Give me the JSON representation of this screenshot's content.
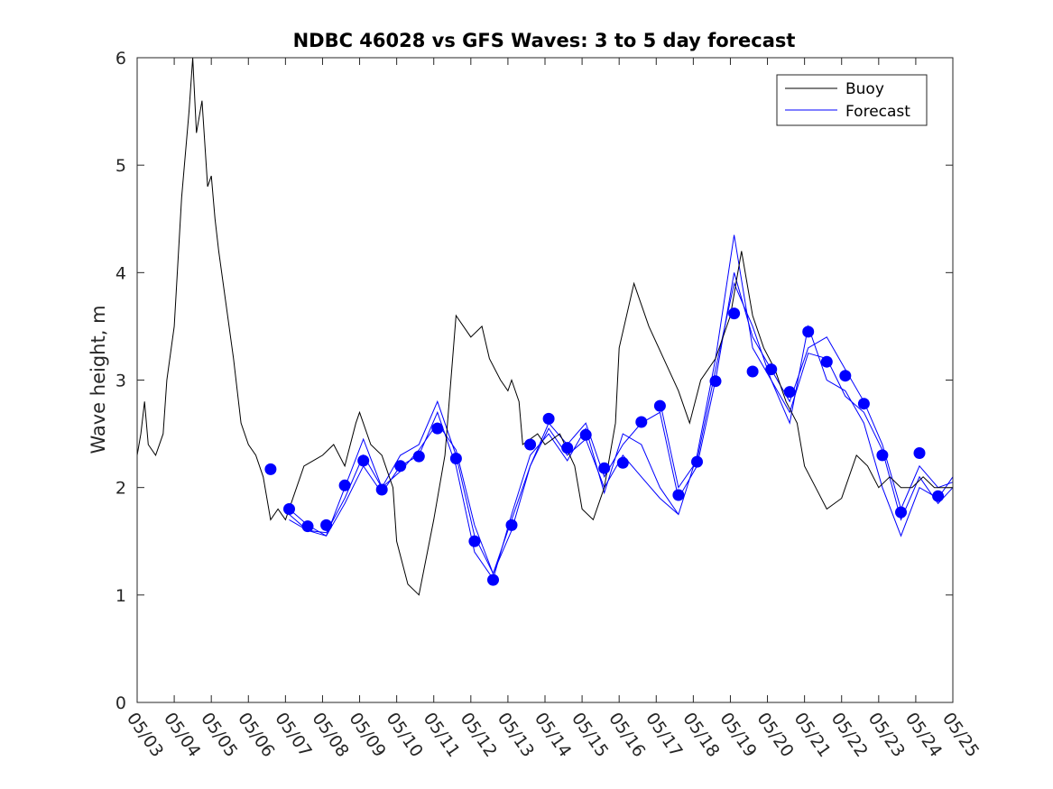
{
  "chart_data": {
    "type": "line",
    "title": "NDBC 46028 vs GFS Waves: 3 to 5 day forecast",
    "xlabel": "",
    "ylabel": "Wave height, m",
    "ylim": [
      0,
      6
    ],
    "yticks": [
      "0",
      "1",
      "2",
      "3",
      "4",
      "5",
      "6"
    ],
    "xlim_days": [
      0,
      22
    ],
    "xticks": [
      "05/03",
      "05/04",
      "05/05",
      "05/06",
      "05/07",
      "05/08",
      "05/09",
      "05/10",
      "05/11",
      "05/12",
      "05/13",
      "05/14",
      "05/15",
      "05/16",
      "05/17",
      "05/18",
      "05/19",
      "05/20",
      "05/21",
      "05/22",
      "05/23",
      "05/24",
      "05/25"
    ],
    "grid": false,
    "legend": {
      "position": "top-right",
      "entries": [
        "Buoy",
        "Forecast"
      ]
    },
    "colors": {
      "buoy": "#000000",
      "forecast": "#0000ff"
    },
    "series": [
      {
        "name": "Buoy",
        "x": [
          0,
          0.1,
          0.2,
          0.3,
          0.5,
          0.7,
          0.8,
          1.0,
          1.2,
          1.4,
          1.5,
          1.6,
          1.75,
          1.9,
          2.0,
          2.1,
          2.2,
          2.4,
          2.6,
          2.8,
          3.0,
          3.2,
          3.4,
          3.6,
          3.8,
          4.0,
          4.2,
          4.5,
          5.0,
          5.3,
          5.6,
          5.9,
          6.0,
          6.3,
          6.6,
          6.9,
          7.0,
          7.3,
          7.6,
          8.0,
          8.3,
          8.6,
          9.0,
          9.3,
          9.5,
          9.8,
          10.0,
          10.1,
          10.3,
          10.4,
          10.8,
          11.0,
          11.4,
          11.8,
          12.0,
          12.3,
          12.6,
          12.9,
          13.0,
          13.4,
          13.8,
          14.2,
          14.6,
          14.9,
          15.2,
          15.6,
          16.0,
          16.3,
          16.6,
          16.9,
          17.2,
          17.5,
          17.8,
          18.0,
          18.3,
          18.6,
          19.0,
          19.4,
          19.7,
          20.0,
          20.3,
          20.6,
          20.9,
          21.2,
          21.5,
          21.8,
          22.0
        ],
        "values": [
          2.3,
          2.5,
          2.8,
          2.4,
          2.3,
          2.5,
          3.0,
          3.5,
          4.7,
          5.5,
          6.0,
          5.3,
          5.6,
          4.8,
          4.9,
          4.5,
          4.2,
          3.7,
          3.2,
          2.6,
          2.4,
          2.3,
          2.1,
          1.7,
          1.8,
          1.7,
          1.9,
          2.2,
          2.3,
          2.4,
          2.2,
          2.6,
          2.7,
          2.4,
          2.3,
          2.0,
          1.5,
          1.1,
          1.0,
          1.7,
          2.3,
          3.6,
          3.4,
          3.5,
          3.2,
          3.0,
          2.9,
          3.0,
          2.8,
          2.4,
          2.5,
          2.4,
          2.5,
          2.2,
          1.8,
          1.7,
          2.0,
          2.6,
          3.3,
          3.9,
          3.5,
          3.2,
          2.9,
          2.6,
          3.0,
          3.2,
          3.6,
          4.2,
          3.6,
          3.3,
          3.1,
          2.8,
          2.6,
          2.2,
          2.0,
          1.8,
          1.9,
          2.3,
          2.2,
          2.0,
          2.1,
          2.0,
          2.0,
          2.1,
          2.0,
          2.0,
          2.0
        ]
      },
      {
        "name": "Forecast",
        "markers": {
          "x": [
            3.6,
            4.1,
            4.6,
            5.1,
            5.6,
            6.1,
            6.6,
            7.1,
            7.6,
            8.1,
            8.6,
            9.1,
            9.6,
            10.1,
            10.6,
            11.1,
            11.6,
            12.1,
            12.6,
            13.1,
            13.6,
            14.1,
            14.6,
            15.1,
            15.6,
            16.1,
            16.6,
            17.1,
            17.6,
            18.1,
            18.6,
            19.1,
            19.6,
            20.1,
            20.6,
            21.1,
            21.6
          ],
          "values": [
            2.17,
            1.8,
            1.64,
            1.65,
            2.02,
            2.25,
            1.98,
            2.2,
            2.29,
            2.55,
            2.27,
            1.5,
            1.14,
            1.65,
            2.4,
            2.64,
            2.37,
            2.49,
            2.18,
            2.23,
            2.61,
            2.76,
            1.93,
            2.24,
            2.99,
            3.62,
            3.08,
            3.1,
            2.89,
            3.45,
            3.17,
            3.04,
            2.78,
            2.3,
            1.77,
            2.32,
            1.92
          ]
        },
        "runs": [
          {
            "x": [
              4.1,
              4.6,
              5.1,
              5.6,
              6.1,
              6.6,
              7.1,
              7.6,
              8.1,
              8.6,
              9.1,
              9.6,
              10.1,
              10.6,
              11.1,
              11.6,
              12.1,
              12.6,
              13.1,
              13.6,
              14.1,
              14.6
            ],
            "values": [
              1.7,
              1.6,
              1.58,
              1.9,
              2.3,
              2.0,
              2.15,
              2.35,
              2.6,
              2.35,
              1.65,
              1.2,
              1.6,
              2.2,
              2.55,
              2.3,
              2.45,
              2.0,
              2.3,
              2.1,
              1.9,
              1.75
            ]
          },
          {
            "x": [
              4.1,
              4.6,
              5.1,
              5.6,
              6.1,
              6.6,
              7.1,
              7.6,
              8.1,
              8.6,
              9.1,
              9.6,
              10.1,
              10.6,
              11.1,
              11.6,
              12.1,
              12.6,
              13.1,
              13.6,
              14.1,
              14.6,
              15.1,
              15.6,
              16.1,
              16.6,
              17.1,
              17.6,
              18.1,
              18.6,
              19.1,
              19.6,
              20.1,
              20.6,
              21.1,
              21.6,
              22.0
            ],
            "values": [
              1.75,
              1.6,
              1.55,
              1.85,
              2.2,
              1.95,
              2.2,
              2.3,
              2.7,
              2.2,
              1.4,
              1.15,
              1.75,
              2.3,
              2.5,
              2.25,
              2.55,
              1.95,
              2.5,
              2.4,
              2.0,
              1.75,
              2.3,
              3.2,
              4.35,
              3.3,
              3.0,
              2.6,
              3.5,
              3.0,
              2.9,
              2.6,
              2.0,
              1.55,
              2.0,
              1.9,
              2.1
            ]
          },
          {
            "x": [
              4.1,
              4.6,
              5.1,
              5.6,
              6.1,
              6.6,
              7.1,
              7.6,
              8.1,
              8.6,
              9.1,
              9.6,
              10.1,
              10.6,
              11.1,
              11.6,
              12.1,
              12.6,
              13.1,
              13.6,
              14.1,
              14.6,
              15.1,
              15.6,
              16.1,
              16.6,
              17.1,
              17.6,
              18.1,
              18.6,
              19.1,
              19.6,
              20.1,
              20.6,
              21.1,
              21.6,
              22.0
            ],
            "values": [
              1.8,
              1.65,
              1.55,
              2.0,
              2.45,
              2.0,
              2.3,
              2.4,
              2.8,
              2.3,
              1.55,
              1.2,
              1.7,
              2.2,
              2.6,
              2.4,
              2.6,
              2.1,
              2.4,
              2.6,
              2.7,
              1.9,
              2.2,
              3.0,
              4.0,
              3.4,
              3.1,
              2.8,
              3.3,
              3.4,
              3.1,
              2.8,
              2.4,
              1.8,
              2.2,
              2.0,
              2.05
            ]
          },
          {
            "x": [
              14.1,
              14.6,
              15.1,
              15.6,
              16.1,
              16.6,
              17.1,
              17.6,
              18.1,
              18.6,
              19.1,
              19.6,
              20.1,
              20.6,
              21.1,
              21.6,
              22.0
            ],
            "values": [
              2.8,
              2.0,
              2.25,
              3.1,
              3.9,
              3.5,
              3.0,
              2.7,
              3.25,
              3.2,
              2.85,
              2.7,
              2.35,
              1.7,
              2.1,
              1.85,
              2.0
            ]
          }
        ]
      }
    ]
  }
}
